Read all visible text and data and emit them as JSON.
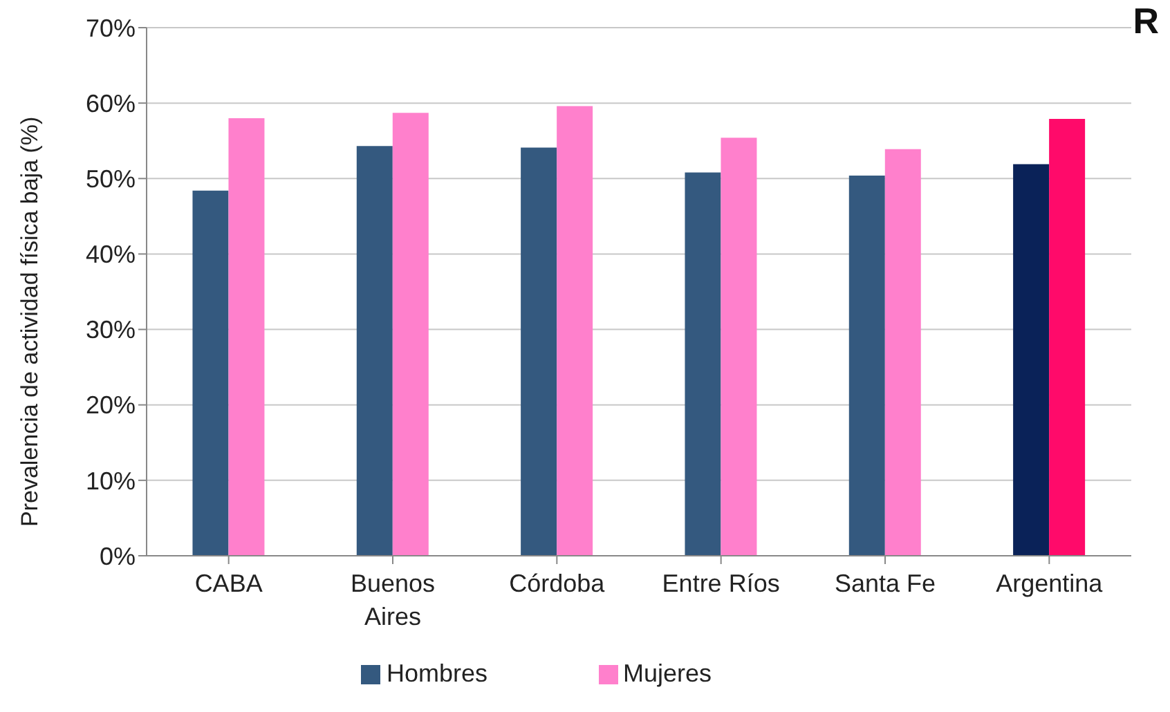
{
  "chart_data": {
    "type": "bar",
    "ylabel": "Prevalencia de actividad física baja  (%)",
    "annotations": [
      "R"
    ],
    "categories": [
      "CABA",
      "Buenos Aires",
      "Córdoba",
      "Entre Ríos",
      "Santa Fe",
      "Argentina"
    ],
    "series": [
      {
        "name": "Hombres",
        "color": "#34597f",
        "colors": [
          "#34597f",
          "#34597f",
          "#34597f",
          "#34597f",
          "#34597f",
          "#0a2258"
        ],
        "values": [
          48.4,
          54.3,
          54.1,
          50.8,
          50.4,
          51.9
        ]
      },
      {
        "name": "Mujeres",
        "color": "#ff80cc",
        "colors": [
          "#ff80cc",
          "#ff80cc",
          "#ff80cc",
          "#ff80cc",
          "#ff80cc",
          "#ff0a6a"
        ],
        "values": [
          58.0,
          58.7,
          59.6,
          55.4,
          53.9,
          57.9
        ]
      }
    ],
    "ylim": [
      0,
      70
    ],
    "yticks": [
      {
        "value": 0,
        "label": "0%"
      },
      {
        "value": 10,
        "label": "10%"
      },
      {
        "value": 20,
        "label": "20%"
      },
      {
        "value": 30,
        "label": "30%"
      },
      {
        "value": 40,
        "label": "40%"
      },
      {
        "value": 50,
        "label": "50%"
      },
      {
        "value": 60,
        "label": "60%"
      },
      {
        "value": 70,
        "label": "70%"
      }
    ],
    "grid": "y",
    "legend": "bottom"
  }
}
